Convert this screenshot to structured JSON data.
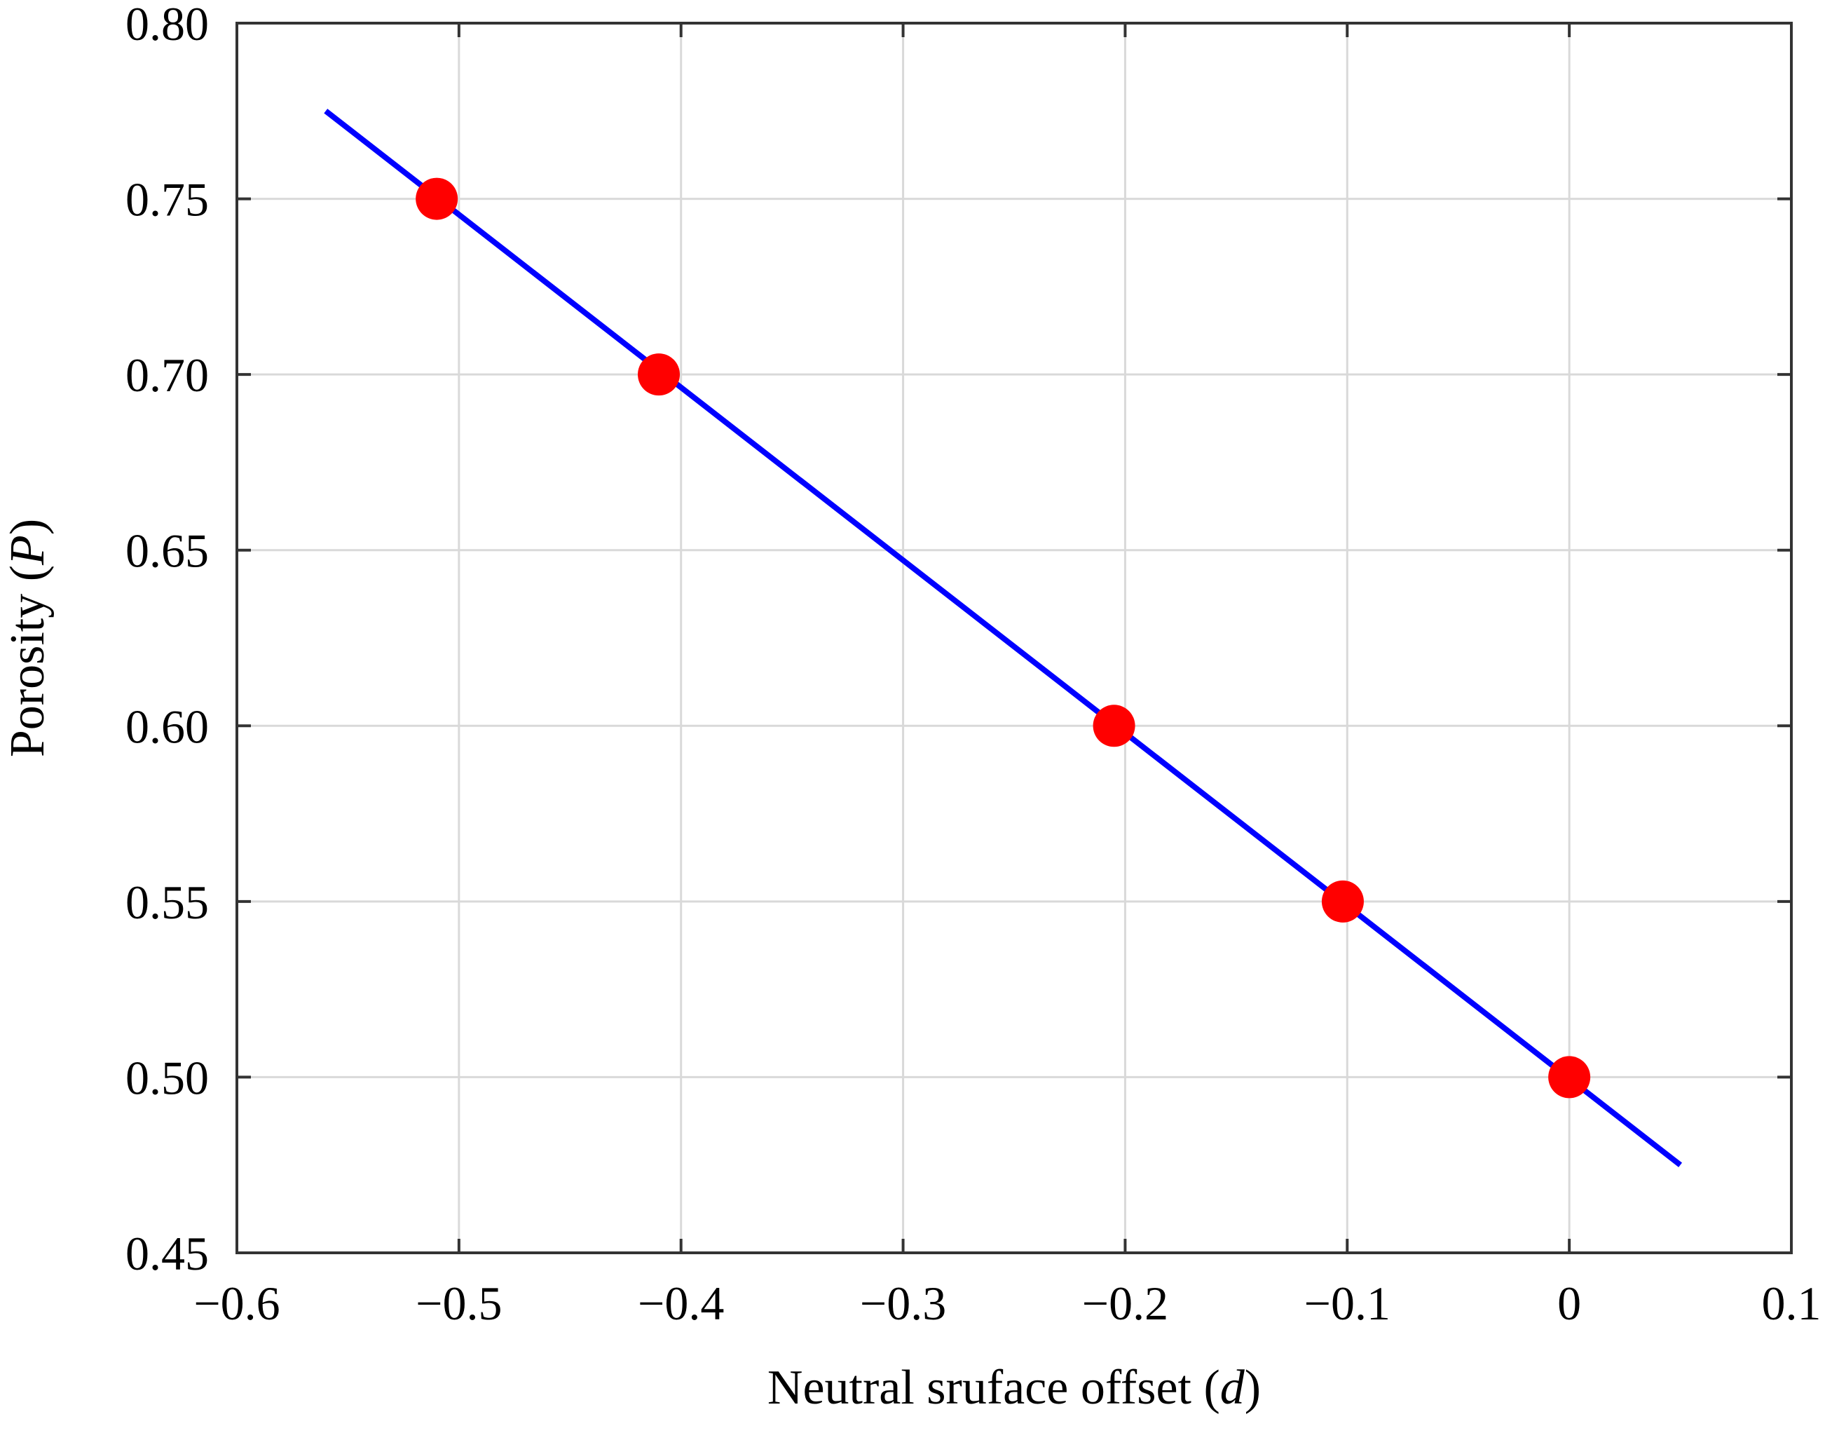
{
  "chart_data": {
    "type": "scatter",
    "xlabel": {
      "text": "Neutral sruface offset (",
      "var": "d",
      "close": ")"
    },
    "ylabel": {
      "text": "Porosity (",
      "var": "P",
      "close": ")"
    },
    "xlim": [
      -0.6,
      0.1
    ],
    "ylim": [
      0.45,
      0.8
    ],
    "x_ticks": [
      -0.6,
      -0.5,
      -0.4,
      -0.3,
      -0.2,
      -0.1,
      0,
      0.1
    ],
    "x_tick_labels": [
      "−0.6",
      "−0.5",
      "−0.4",
      "−0.3",
      "−0.2",
      "−0.1",
      "0",
      "0.1"
    ],
    "y_ticks": [
      0.45,
      0.5,
      0.55,
      0.6,
      0.65,
      0.7,
      0.75,
      0.8
    ],
    "y_tick_labels": [
      "0.45",
      "0.50",
      "0.55",
      "0.60",
      "0.65",
      "0.70",
      "0.75",
      "0.80"
    ],
    "grid": true,
    "series": [
      {
        "kind": "line",
        "color": "#0000ff",
        "x": [
          -0.56,
          0.05
        ],
        "y": [
          0.775,
          0.475
        ]
      },
      {
        "kind": "scatter",
        "color": "#ff0000",
        "x": [
          -0.51,
          -0.41,
          -0.205,
          -0.102,
          0.0
        ],
        "y": [
          0.75,
          0.7,
          0.6,
          0.55,
          0.5
        ]
      }
    ]
  }
}
